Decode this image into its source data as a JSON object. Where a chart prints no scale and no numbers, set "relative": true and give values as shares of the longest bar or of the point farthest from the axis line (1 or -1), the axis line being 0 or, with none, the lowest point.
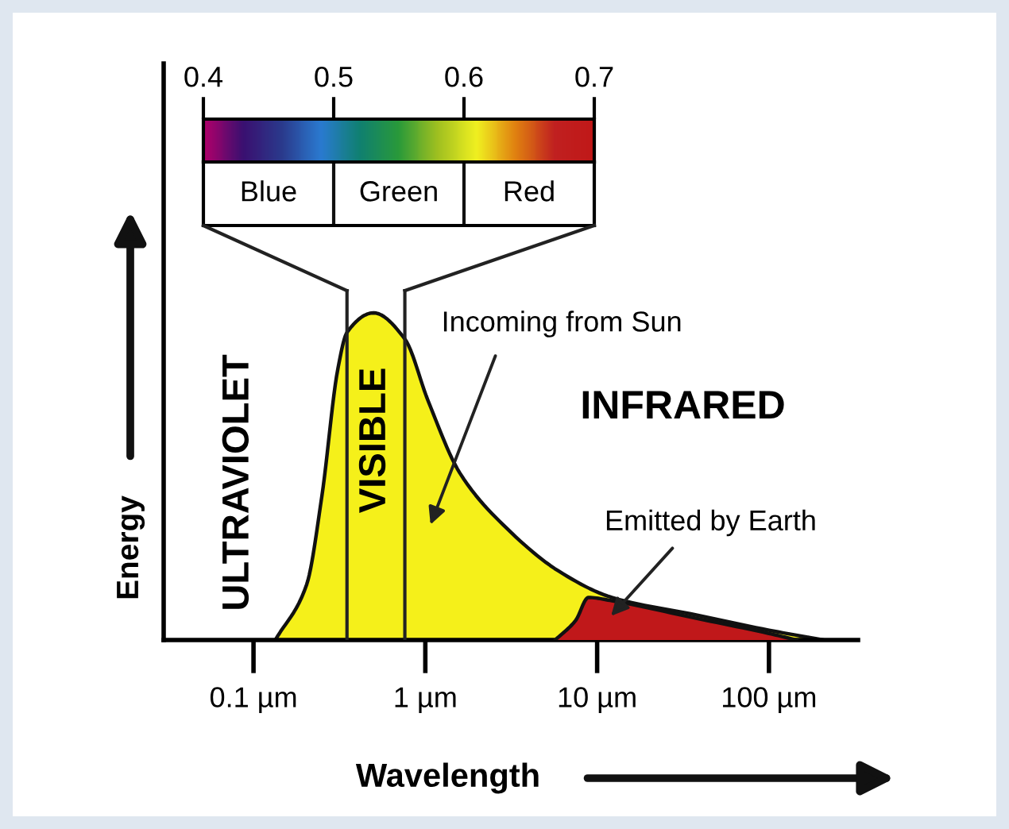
{
  "chart_data": {
    "type": "area",
    "relative": true,
    "log": "x",
    "tick_labels": "x",
    "xlabel": "Wavelength",
    "ylabel": "Energy",
    "xlim": [
      0.03,
      330
    ],
    "xticks": [
      {
        "value": 0.1,
        "label": "0.1 µm"
      },
      {
        "value": 1,
        "label": "1 µm"
      },
      {
        "value": 10,
        "label": "10 µm"
      },
      {
        "value": 100,
        "label": "100 µm"
      }
    ],
    "series": [
      {
        "color": "#f5f01a",
        "x": [
          0.134,
          0.204,
          0.25,
          0.31,
          0.35,
          0.5,
          0.76,
          1.04,
          1.59,
          3.0,
          6.0,
          12.2,
          35,
          100,
          208
        ],
        "values": [
          0,
          0.17,
          0.44,
          0.83,
          0.94,
          1,
          0.92,
          0.73,
          0.51,
          0.34,
          0.21,
          0.13,
          0.08,
          0.03,
          0
        ]
      },
      {
        "color": "#c0181a",
        "x": [
          5.7,
          7.5,
          8.9,
          12.2,
          35,
          100,
          145
        ],
        "values": [
          0,
          0.06,
          0.13,
          0.12,
          0.07,
          0.02,
          0
        ]
      }
    ],
    "ref_lines": [
      {
        "axis": "x",
        "value": 0.35,
        "color": "#222222"
      },
      {
        "axis": "x",
        "value": 0.76,
        "color": "#222222"
      }
    ],
    "clim": [
      0.4,
      0.7
    ],
    "cticks": [
      0.4,
      0.5,
      0.6,
      0.7
    ],
    "annotations": [
      "ULTRAVIOLET",
      "VISIBLE",
      "INFRARED",
      "Incoming from Sun",
      "Emitted by Earth",
      "Blue",
      "Green",
      "Red"
    ]
  }
}
